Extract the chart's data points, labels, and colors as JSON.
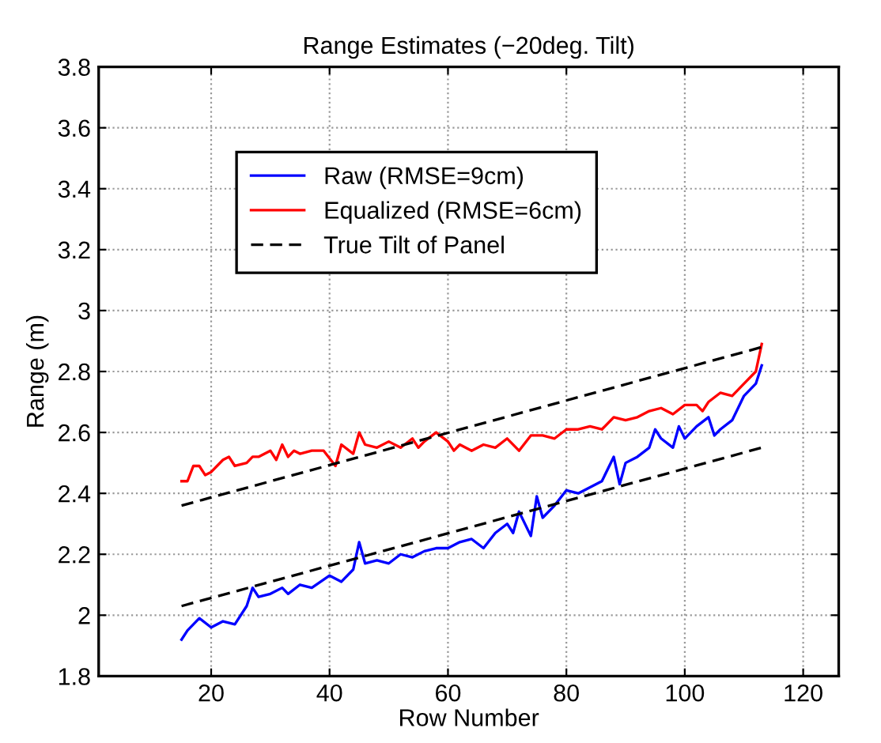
{
  "chart_data": {
    "type": "line",
    "title": "Range Estimates (−20deg. Tilt)",
    "xlabel": "Row Number",
    "ylabel": "Range (m)",
    "xlim": [
      1,
      126
    ],
    "xticks": [
      20,
      40,
      60,
      80,
      100,
      120
    ],
    "ylim": [
      1.8,
      3.8
    ],
    "yticks": [
      1.8,
      2,
      2.2,
      2.4,
      2.6,
      2.8,
      3,
      3.2,
      3.4,
      3.6,
      3.8
    ],
    "grid": true,
    "legend": "top left",
    "marker": "none",
    "series": [
      {
        "name": "Raw (RMSE=9cm)",
        "color": "#0000ff",
        "line_style": "solid",
        "x": [
          15,
          16,
          18,
          20,
          22,
          24,
          26,
          27,
          28,
          30,
          32,
          33,
          35,
          37,
          40,
          42,
          44,
          45,
          46,
          48,
          50,
          52,
          54,
          56,
          58,
          60,
          62,
          64,
          66,
          68,
          70,
          71,
          72,
          74,
          75,
          76,
          78,
          80,
          82,
          84,
          86,
          88,
          89,
          90,
          92,
          94,
          95,
          96,
          98,
          99,
          100,
          102,
          104,
          105,
          106,
          108,
          110,
          112,
          113
        ],
        "values": [
          1.92,
          1.95,
          1.99,
          1.96,
          1.98,
          1.97,
          2.03,
          2.09,
          2.06,
          2.07,
          2.09,
          2.07,
          2.1,
          2.09,
          2.13,
          2.11,
          2.15,
          2.24,
          2.17,
          2.18,
          2.17,
          2.2,
          2.19,
          2.21,
          2.22,
          2.22,
          2.24,
          2.25,
          2.22,
          2.27,
          2.3,
          2.27,
          2.34,
          2.26,
          2.39,
          2.32,
          2.36,
          2.41,
          2.4,
          2.42,
          2.44,
          2.52,
          2.43,
          2.5,
          2.52,
          2.55,
          2.61,
          2.58,
          2.55,
          2.62,
          2.58,
          2.62,
          2.65,
          2.59,
          2.61,
          2.64,
          2.72,
          2.76,
          2.82
        ]
      },
      {
        "name": "Equalized (RMSE=6cm)",
        "color": "#ff0000",
        "line_style": "solid",
        "x": [
          15,
          16,
          17,
          18,
          19,
          20,
          22,
          23,
          24,
          26,
          27,
          28,
          30,
          31,
          32,
          33,
          34,
          35,
          37,
          39,
          41,
          42,
          44,
          45,
          46,
          48,
          50,
          52,
          54,
          55,
          56,
          58,
          60,
          61,
          62,
          64,
          66,
          68,
          70,
          72,
          74,
          76,
          78,
          80,
          82,
          84,
          86,
          88,
          90,
          92,
          94,
          96,
          98,
          100,
          102,
          103,
          104,
          106,
          108,
          110,
          112,
          113
        ],
        "values": [
          2.44,
          2.44,
          2.49,
          2.49,
          2.46,
          2.47,
          2.51,
          2.52,
          2.49,
          2.5,
          2.52,
          2.52,
          2.54,
          2.51,
          2.56,
          2.52,
          2.54,
          2.53,
          2.54,
          2.54,
          2.49,
          2.56,
          2.53,
          2.6,
          2.56,
          2.55,
          2.57,
          2.55,
          2.58,
          2.55,
          2.57,
          2.6,
          2.57,
          2.54,
          2.56,
          2.54,
          2.56,
          2.55,
          2.58,
          2.54,
          2.59,
          2.59,
          2.58,
          2.61,
          2.61,
          2.62,
          2.61,
          2.65,
          2.64,
          2.65,
          2.67,
          2.68,
          2.66,
          2.69,
          2.69,
          2.67,
          2.7,
          2.73,
          2.72,
          2.76,
          2.8,
          2.89
        ]
      },
      {
        "name": "True Tilt of Panel",
        "color": "#000000",
        "line_style": "dashed",
        "x": [
          15,
          113
        ],
        "values": [
          2.36,
          2.88
        ]
      },
      {
        "color": "#000000",
        "line_style": "dashed",
        "x": [
          15,
          113
        ],
        "values": [
          2.03,
          2.55
        ]
      }
    ]
  }
}
